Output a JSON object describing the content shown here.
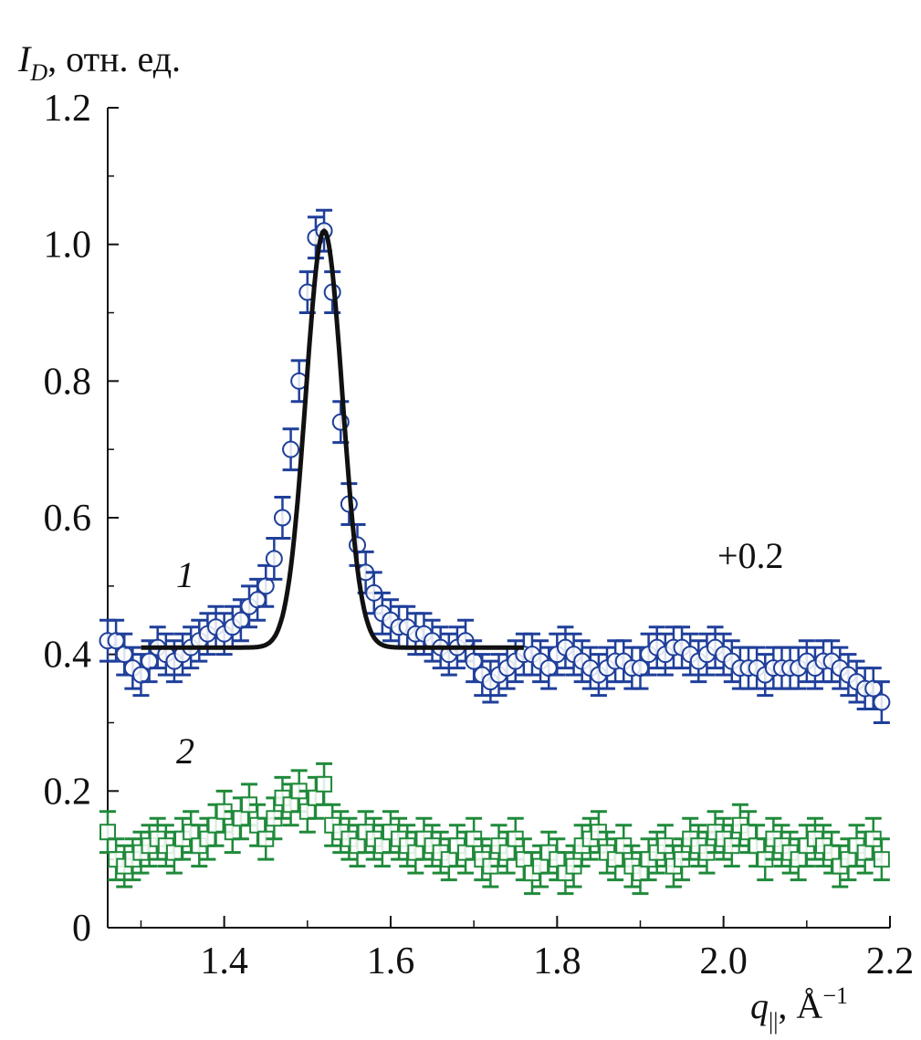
{
  "chart_data": {
    "type": "scatter",
    "title": "",
    "ylabel": {
      "symbol": "I",
      "subscript": "D",
      "unit": ", отн. ед."
    },
    "xlabel": {
      "symbol": "q",
      "subscript": "||",
      "unit": ", Å",
      "exponent": "−1"
    },
    "xlim": [
      1.26,
      2.2
    ],
    "ylim": [
      0,
      1.2
    ],
    "x_ticks": [
      1.4,
      1.6,
      1.8,
      2.0,
      2.2
    ],
    "x_tick_labels": [
      "1.4",
      "1.6",
      "1.8",
      "2.0",
      "2.2"
    ],
    "y_ticks": [
      0,
      0.2,
      0.4,
      0.6,
      0.8,
      1.0,
      1.2
    ],
    "y_tick_labels": [
      "0",
      "0.2",
      "0.4",
      "0.6",
      "0.8",
      "1.0",
      "1.2"
    ],
    "grid": false,
    "annotations": {
      "curve1": "1",
      "curve2": "2",
      "offset": "+0.2"
    },
    "series": [
      {
        "label": "1",
        "marker": "circle",
        "color": "#1f3f9a",
        "error": 0.03,
        "x": [
          1.26,
          1.27,
          1.28,
          1.29,
          1.3,
          1.31,
          1.32,
          1.33,
          1.34,
          1.35,
          1.36,
          1.37,
          1.38,
          1.39,
          1.4,
          1.41,
          1.42,
          1.43,
          1.44,
          1.45,
          1.46,
          1.47,
          1.48,
          1.49,
          1.5,
          1.51,
          1.52,
          1.53,
          1.54,
          1.55,
          1.56,
          1.57,
          1.58,
          1.59,
          1.6,
          1.61,
          1.62,
          1.63,
          1.64,
          1.65,
          1.66,
          1.67,
          1.68,
          1.69,
          1.7,
          1.71,
          1.72,
          1.73,
          1.74,
          1.75,
          1.76,
          1.77,
          1.78,
          1.79,
          1.8,
          1.81,
          1.82,
          1.83,
          1.84,
          1.85,
          1.86,
          1.87,
          1.88,
          1.89,
          1.9,
          1.91,
          1.92,
          1.93,
          1.94,
          1.95,
          1.96,
          1.97,
          1.98,
          1.99,
          2.0,
          2.01,
          2.02,
          2.03,
          2.04,
          2.05,
          2.06,
          2.07,
          2.08,
          2.09,
          2.1,
          2.11,
          2.12,
          2.13,
          2.14,
          2.15,
          2.16,
          2.17,
          2.18,
          2.19
        ],
        "y": [
          0.42,
          0.42,
          0.4,
          0.38,
          0.37,
          0.39,
          0.41,
          0.4,
          0.39,
          0.4,
          0.41,
          0.42,
          0.43,
          0.44,
          0.43,
          0.44,
          0.45,
          0.47,
          0.48,
          0.5,
          0.54,
          0.6,
          0.7,
          0.8,
          0.93,
          1.01,
          1.02,
          0.93,
          0.74,
          0.62,
          0.56,
          0.52,
          0.49,
          0.46,
          0.45,
          0.44,
          0.44,
          0.43,
          0.43,
          0.42,
          0.41,
          0.4,
          0.41,
          0.42,
          0.39,
          0.37,
          0.36,
          0.37,
          0.38,
          0.39,
          0.4,
          0.4,
          0.39,
          0.38,
          0.4,
          0.41,
          0.4,
          0.39,
          0.38,
          0.37,
          0.38,
          0.39,
          0.39,
          0.38,
          0.38,
          0.4,
          0.41,
          0.4,
          0.41,
          0.41,
          0.4,
          0.39,
          0.4,
          0.41,
          0.4,
          0.39,
          0.38,
          0.38,
          0.38,
          0.37,
          0.38,
          0.38,
          0.38,
          0.38,
          0.39,
          0.38,
          0.39,
          0.39,
          0.38,
          0.37,
          0.36,
          0.35,
          0.35,
          0.33
        ]
      },
      {
        "label": "2",
        "marker": "square",
        "color": "#1f8a3a",
        "error": 0.03,
        "x": [
          1.26,
          1.27,
          1.28,
          1.29,
          1.3,
          1.31,
          1.32,
          1.33,
          1.34,
          1.35,
          1.36,
          1.37,
          1.38,
          1.39,
          1.4,
          1.41,
          1.42,
          1.43,
          1.44,
          1.45,
          1.46,
          1.47,
          1.48,
          1.49,
          1.5,
          1.51,
          1.52,
          1.53,
          1.54,
          1.55,
          1.56,
          1.57,
          1.58,
          1.59,
          1.6,
          1.61,
          1.62,
          1.63,
          1.64,
          1.65,
          1.66,
          1.67,
          1.68,
          1.69,
          1.7,
          1.71,
          1.72,
          1.73,
          1.74,
          1.75,
          1.76,
          1.77,
          1.78,
          1.79,
          1.8,
          1.81,
          1.82,
          1.83,
          1.84,
          1.85,
          1.86,
          1.87,
          1.88,
          1.89,
          1.9,
          1.91,
          1.92,
          1.93,
          1.94,
          1.95,
          1.96,
          1.97,
          1.98,
          1.99,
          2.0,
          2.01,
          2.02,
          2.03,
          2.04,
          2.05,
          2.06,
          2.07,
          2.08,
          2.09,
          2.1,
          2.11,
          2.12,
          2.13,
          2.14,
          2.15,
          2.16,
          2.17,
          2.18,
          2.19
        ],
        "y": [
          0.14,
          0.1,
          0.09,
          0.1,
          0.11,
          0.12,
          0.13,
          0.12,
          0.11,
          0.13,
          0.14,
          0.12,
          0.13,
          0.15,
          0.17,
          0.14,
          0.16,
          0.18,
          0.15,
          0.13,
          0.16,
          0.19,
          0.18,
          0.2,
          0.17,
          0.19,
          0.21,
          0.15,
          0.14,
          0.13,
          0.12,
          0.14,
          0.13,
          0.12,
          0.14,
          0.13,
          0.12,
          0.11,
          0.13,
          0.12,
          0.11,
          0.1,
          0.12,
          0.11,
          0.13,
          0.1,
          0.09,
          0.12,
          0.11,
          0.13,
          0.1,
          0.08,
          0.09,
          0.11,
          0.1,
          0.08,
          0.09,
          0.12,
          0.13,
          0.14,
          0.11,
          0.1,
          0.12,
          0.09,
          0.08,
          0.1,
          0.11,
          0.12,
          0.09,
          0.1,
          0.13,
          0.12,
          0.11,
          0.14,
          0.13,
          0.12,
          0.15,
          0.14,
          0.12,
          0.1,
          0.13,
          0.12,
          0.11,
          0.1,
          0.12,
          0.13,
          0.12,
          0.11,
          0.09,
          0.1,
          0.12,
          0.11,
          0.13,
          0.1
        ]
      },
      {
        "label": "fit",
        "type": "line",
        "color": "#111111",
        "baseline": 0.41,
        "amplitude": 0.61,
        "center": 1.52,
        "sigma": 0.022,
        "x_range": [
          1.3,
          1.76
        ]
      }
    ]
  }
}
